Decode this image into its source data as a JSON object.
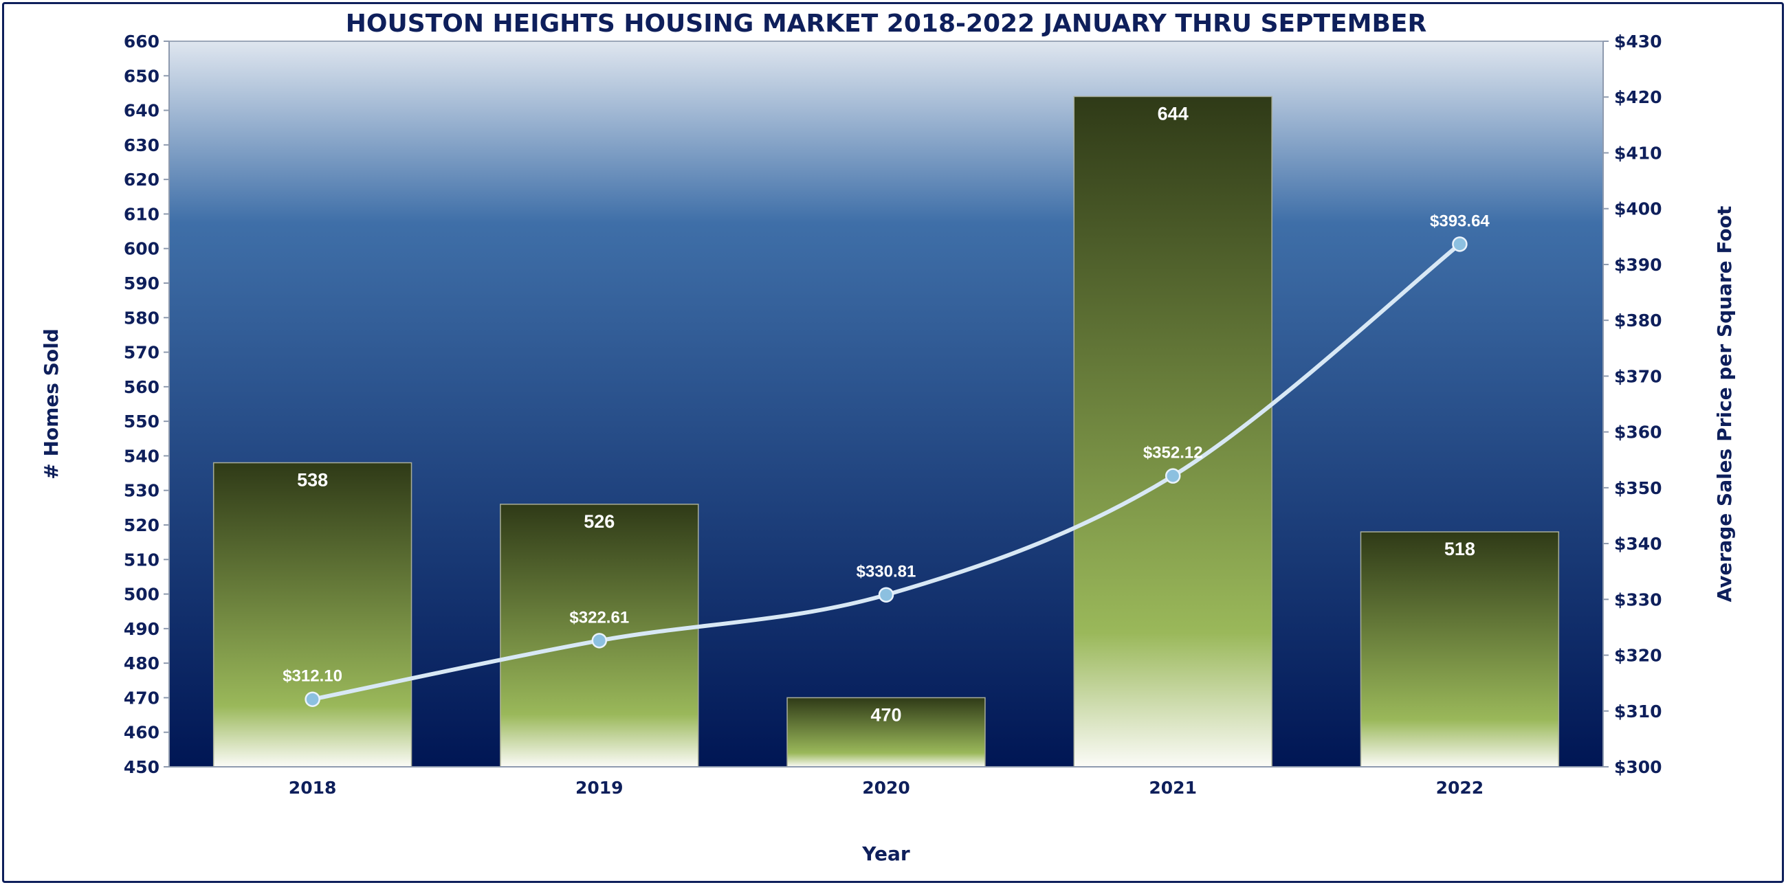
{
  "chart_data": {
    "type": "bar",
    "title": "HOUSTON HEIGHTS HOUSING MARKET 2018-2022 JANUARY THRU SEPTEMBER",
    "xlabel": "Year",
    "ylabel": "# Homes Sold",
    "y2label": "Average Sales Price per Square Foot",
    "categories": [
      "2018",
      "2019",
      "2020",
      "2021",
      "2022"
    ],
    "ylim": [
      450,
      660
    ],
    "ystep": 10,
    "y2lim": [
      300,
      430
    ],
    "y2step": 10,
    "y2_prefix": "$",
    "legend": "none",
    "grid": false,
    "series": [
      {
        "type": "bar",
        "axis": "left",
        "values": [
          538,
          526,
          470,
          644,
          518
        ],
        "labels": [
          "538",
          "526",
          "470",
          "644",
          "518"
        ]
      },
      {
        "type": "line",
        "axis": "right",
        "smooth": true,
        "values": [
          312.1,
          322.61,
          330.81,
          352.12,
          393.64
        ],
        "labels": [
          "$312.10",
          "$322.61",
          "$330.81",
          "$352.12",
          "$393.64"
        ]
      }
    ],
    "colors": {
      "frame": "#0e1f5b",
      "text": "#0e1f5b",
      "plot_top": "#dfe6ef",
      "plot_mid": "#3f6fa8",
      "plot_bottom": "#001654",
      "bar_top": "#2f3a17",
      "bar_mid": "#9ab85a",
      "bar_bottom": "#fbfbf7",
      "line": "#d8e8f5",
      "marker": "#8cc0e0"
    }
  }
}
